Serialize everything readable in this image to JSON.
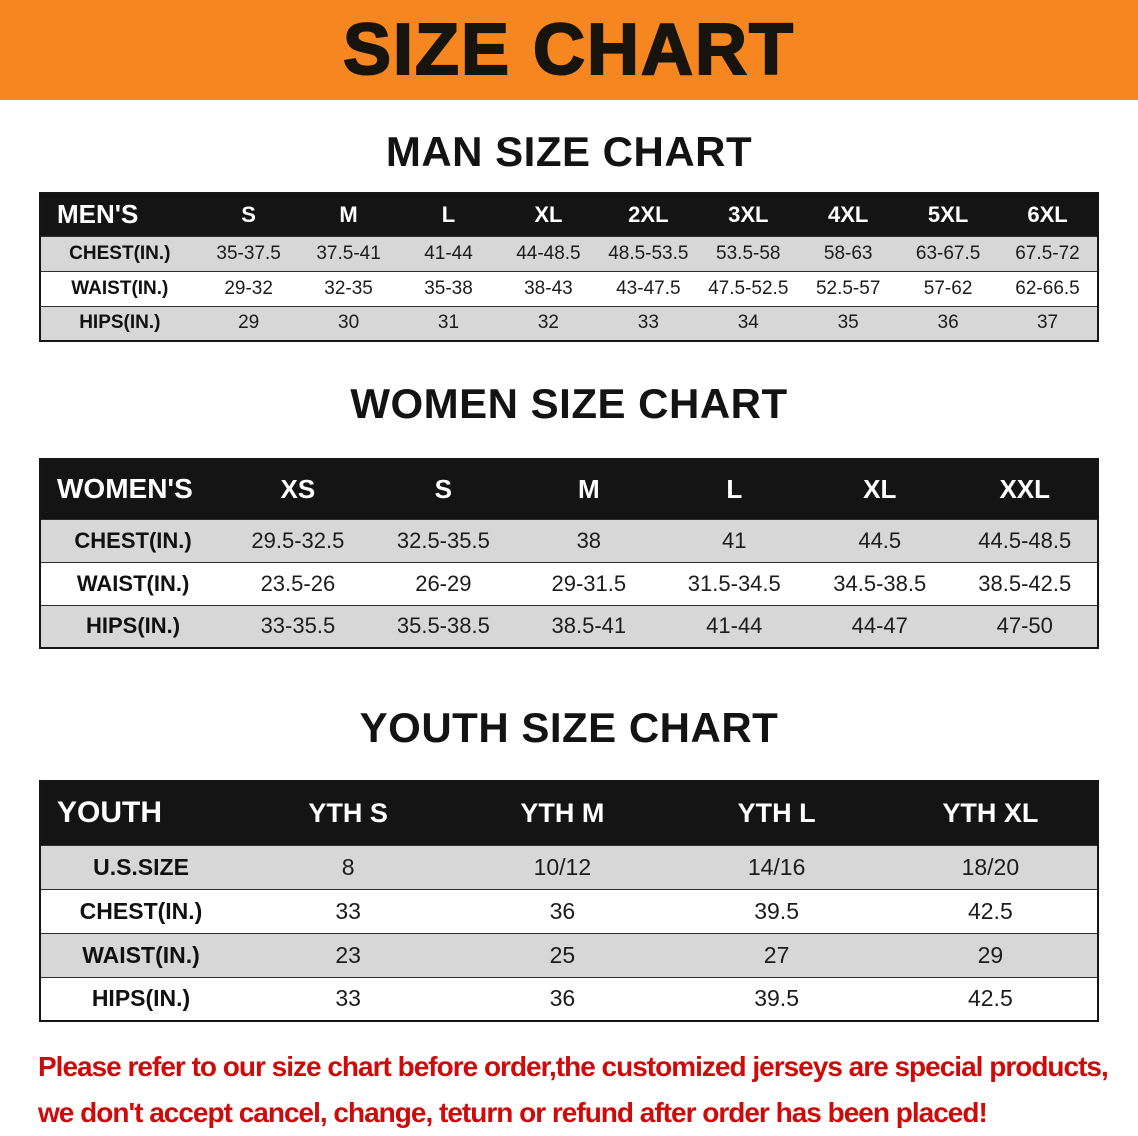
{
  "banner": {
    "title": "SIZE CHART"
  },
  "colors": {
    "banner_bg": "#f6861f",
    "header_bg": "#141414",
    "row_shade": "#d7d7d7",
    "disclaimer_red": "#cf0a0a"
  },
  "men": {
    "heading": "MAN SIZE CHART",
    "table": {
      "header": [
        "MEN'S",
        "S",
        "M",
        "L",
        "XL",
        "2XL",
        "3XL",
        "4XL",
        "5XL",
        "6XL"
      ],
      "rows": [
        [
          "CHEST(IN.)",
          "35-37.5",
          "37.5-41",
          "41-44",
          "44-48.5",
          "48.5-53.5",
          "53.5-58",
          "58-63",
          "63-67.5",
          "67.5-72"
        ],
        [
          "WAIST(IN.)",
          "29-32",
          "32-35",
          "35-38",
          "38-43",
          "43-47.5",
          "47.5-52.5",
          "52.5-57",
          "57-62",
          "62-66.5"
        ],
        [
          "HIPS(IN.)",
          "29",
          "30",
          "31",
          "32",
          "33",
          "34",
          "35",
          "36",
          "37"
        ]
      ]
    }
  },
  "women": {
    "heading": "WOMEN SIZE CHART",
    "table": {
      "header": [
        "WOMEN'S",
        "XS",
        "S",
        "M",
        "L",
        "XL",
        "XXL"
      ],
      "rows": [
        [
          "CHEST(IN.)",
          "29.5-32.5",
          "32.5-35.5",
          "38",
          "41",
          "44.5",
          "44.5-48.5"
        ],
        [
          "WAIST(IN.)",
          "23.5-26",
          "26-29",
          "29-31.5",
          "31.5-34.5",
          "34.5-38.5",
          "38.5-42.5"
        ],
        [
          "HIPS(IN.)",
          "33-35.5",
          "35.5-38.5",
          "38.5-41",
          "41-44",
          "44-47",
          "47-50"
        ]
      ]
    }
  },
  "youth": {
    "heading": "YOUTH SIZE CHART",
    "table": {
      "header": [
        "YOUTH",
        "YTH S",
        "YTH M",
        "YTH L",
        "YTH XL"
      ],
      "rows": [
        [
          "U.S.SIZE",
          "8",
          "10/12",
          "14/16",
          "18/20"
        ],
        [
          "CHEST(IN.)",
          "33",
          "36",
          "39.5",
          "42.5"
        ],
        [
          "WAIST(IN.)",
          "23",
          "25",
          "27",
          "29"
        ],
        [
          "HIPS(IN.)",
          "33",
          "36",
          "39.5",
          "42.5"
        ]
      ]
    }
  },
  "disclaimer": {
    "line1": "Please refer to our size chart before order,the customized jerseys are special products,",
    "line2": "we don't accept cancel, change, teturn or refund after order has been placed!"
  }
}
